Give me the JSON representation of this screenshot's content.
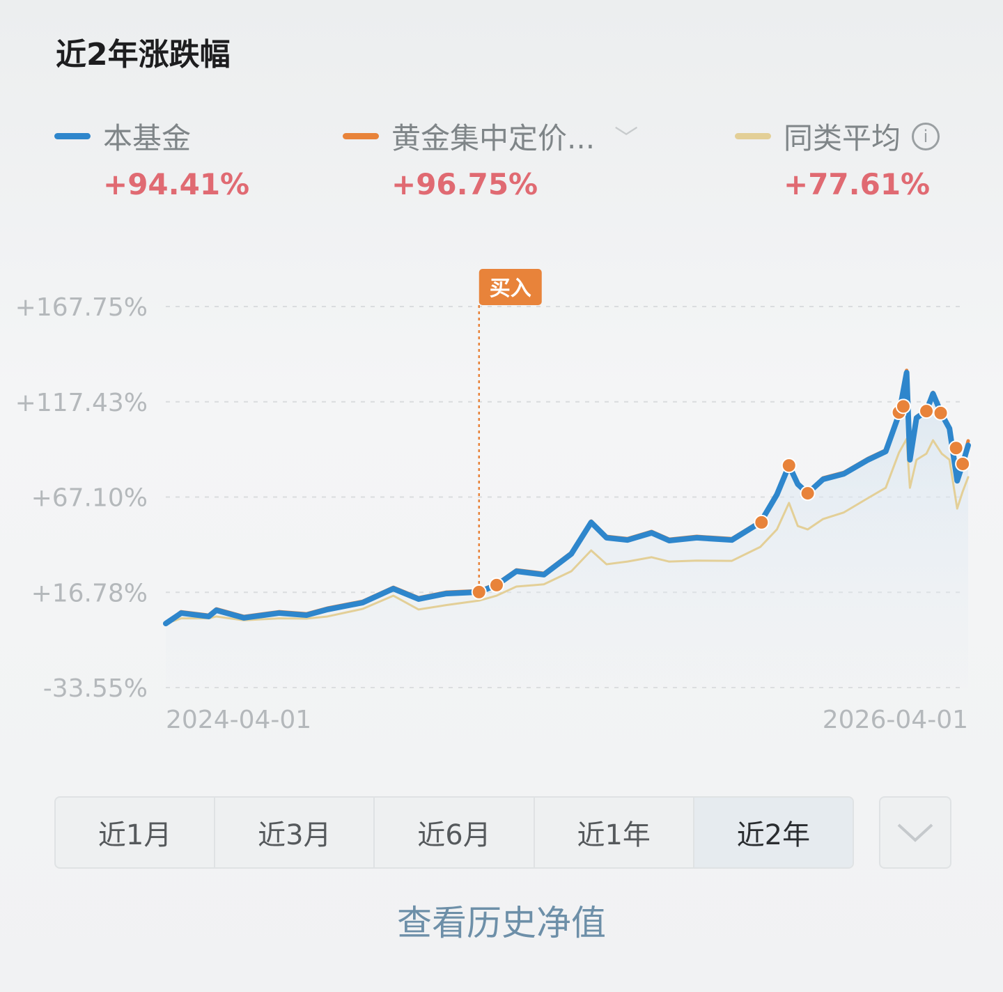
{
  "header": {
    "title": "近2年涨跌幅"
  },
  "legend": [
    {
      "name": "本基金",
      "value": "+94.41%",
      "color": "#2e86cc"
    },
    {
      "name": "黄金集中定价...",
      "value": "+96.75%",
      "color": "#e8833a"
    },
    {
      "name": "同类平均",
      "value": "+77.61%",
      "color": "#e3cf97"
    }
  ],
  "chart_data": {
    "type": "line",
    "yticks": [
      "+167.75%",
      "+117.43%",
      "+67.10%",
      "+16.78%",
      "-33.55%"
    ],
    "ylim": [
      -33.55,
      167.75
    ],
    "xticks": [
      "2024-04-01",
      "2026-04-01"
    ],
    "xlim": [
      "2024-04-01",
      "2026-04-01"
    ],
    "grid": "horizontal dashed",
    "x": [
      "2024-04-01",
      "2024-04-15",
      "2024-05-10",
      "2024-05-17",
      "2024-06-11",
      "2024-07-13",
      "2024-08-07",
      "2024-08-26",
      "2024-09-27",
      "2024-10-25",
      "2024-11-17",
      "2024-12-12",
      "2025-01-11",
      "2025-01-27",
      "2025-02-14",
      "2025-03-11",
      "2025-04-05",
      "2025-04-23",
      "2025-05-07",
      "2025-05-26",
      "2025-06-17",
      "2025-07-03",
      "2025-07-28",
      "2025-08-29",
      "2025-09-24",
      "2025-10-09",
      "2025-10-20",
      "2025-10-28",
      "2025-11-06",
      "2025-11-20",
      "2025-12-09",
      "2025-12-31",
      "2026-01-16",
      "2026-01-28",
      "2026-02-04",
      "2026-02-07",
      "2026-02-13",
      "2026-02-22",
      "2026-02-28",
      "2026-03-08",
      "2026-03-15",
      "2026-03-22",
      "2026-03-27",
      "2026-04-01"
    ],
    "series": [
      {
        "name": "本基金",
        "color": "#2e86cc",
        "values": [
          0.3,
          5.8,
          4,
          7.3,
          3.3,
          5.8,
          4.7,
          7.7,
          11.3,
          18.7,
          13.2,
          16.1,
          16.9,
          20.6,
          27.9,
          26.1,
          37.1,
          53.7,
          45.6,
          44.4,
          48.2,
          44.1,
          45.6,
          44.4,
          53.7,
          68.4,
          83.8,
          73.9,
          69.1,
          76.5,
          79.4,
          86.8,
          91.2,
          110.7,
          132.8,
          86.8,
          108.9,
          112.5,
          121.7,
          110.7,
          103.3,
          75.7,
          84.6,
          94.41
        ]
      },
      {
        "name": "黄金集中定价...",
        "color": "#e8833a",
        "values": [
          0.3,
          6.5,
          4.7,
          8,
          4,
          6.5,
          5.4,
          8.4,
          12,
          19.4,
          13.9,
          16.8,
          17.6,
          21.3,
          28.6,
          26.8,
          37.8,
          54.4,
          46.3,
          45.1,
          48.9,
          44.8,
          46.3,
          45.1,
          54.4,
          69.1,
          84.5,
          74.6,
          69.8,
          77.2,
          80.1,
          87.5,
          91.9,
          111.4,
          134,
          87.5,
          109.6,
          113.2,
          122.4,
          111.4,
          104,
          76.4,
          85.3,
          96.75
        ]
      },
      {
        "name": "同类平均",
        "color": "#e3cf97",
        "values": [
          0.3,
          3,
          3,
          4,
          2,
          3,
          2.9,
          4,
          8,
          15,
          7.7,
          10,
          12.4,
          15,
          19.8,
          21,
          27.9,
          38.9,
          31.6,
          33,
          35.3,
          33,
          33.5,
          33.4,
          40.8,
          50,
          64,
          51.8,
          50,
          55.5,
          59,
          66.6,
          72,
          90.5,
          97.8,
          72,
          86.8,
          90,
          97.1,
          90,
          86.8,
          61,
          70,
          77.61
        ]
      }
    ],
    "markers": {
      "color": "#e8833a",
      "label": "买入",
      "points": [
        [
          "2025-01-11",
          16.9
        ],
        [
          "2025-01-27",
          20.6
        ],
        [
          "2025-09-25",
          53.7
        ],
        [
          "2025-10-20",
          83.8
        ],
        [
          "2025-11-06",
          69.1
        ],
        [
          "2026-01-28",
          111.8
        ],
        [
          "2026-02-01",
          115
        ],
        [
          "2026-02-22",
          112.5
        ],
        [
          "2026-03-07",
          111.5
        ],
        [
          "2026-03-21",
          93
        ],
        [
          "2026-03-27",
          84.6
        ]
      ]
    }
  },
  "tabs": [
    {
      "label": "近1月"
    },
    {
      "label": "近3月"
    },
    {
      "label": "近6月"
    },
    {
      "label": "近1年"
    },
    {
      "label": "近2年",
      "selected": true
    }
  ],
  "more_icon": "chevron-down-icon",
  "history_link": "查看历史净值"
}
